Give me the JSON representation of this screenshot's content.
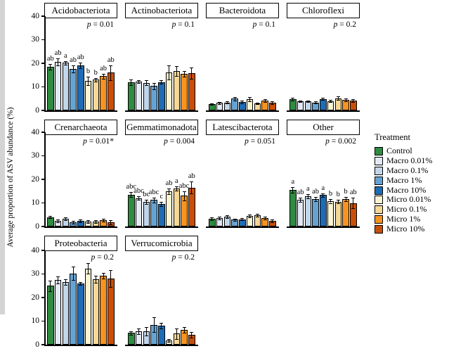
{
  "figure": {
    "ylabel": "Average proportion of ASV abundance (%)",
    "legend_title": "Treatment"
  },
  "chart_data": {
    "type": "bar",
    "title": "",
    "xlabel": "",
    "ylabel": "Average proportion of ASV abundance (%)",
    "ylim": [
      0,
      40
    ],
    "yticks": [
      "0",
      "10",
      "20",
      "30",
      "40"
    ],
    "grid": false,
    "legend_position": "right",
    "legend_title": "Treatment",
    "categories": [
      "Control",
      "Macro 0.01%",
      "Macro 0.1%",
      "Macro 1%",
      "Macro 10%",
      "Micro 0.01%",
      "Micro 0.1%",
      "Micro 1%",
      "Micro 10%"
    ],
    "colors": [
      "#2e8b3f",
      "#e4eaf5",
      "#c2d6ea",
      "#66a3d2",
      "#1e6cb5",
      "#f9f4d2",
      "#f5d896",
      "#f79320",
      "#c94e08"
    ],
    "panels": [
      {
        "name": "Acidobacteriota",
        "row": 0,
        "col": 0,
        "p_text": "p = 0.01",
        "values": [
          18.5,
          20.5,
          20.2,
          17.5,
          19.0,
          12.5,
          13.0,
          14.5,
          16.0
        ],
        "errors": [
          1.2,
          1.5,
          0.8,
          1.5,
          1.2,
          1.8,
          0.8,
          1.0,
          3.2
        ],
        "letters": [
          "ab",
          "ab",
          "a",
          "ab",
          "ab",
          "b",
          "b",
          "ab",
          "ab"
        ]
      },
      {
        "name": "Actinobacteriota",
        "row": 0,
        "col": 1,
        "p_text": "p = 0.1",
        "values": [
          12.0,
          12.2,
          11.7,
          10.3,
          12.0,
          16.0,
          16.7,
          15.5,
          15.8
        ],
        "errors": [
          1.2,
          0.6,
          1.0,
          1.2,
          0.8,
          3.0,
          2.0,
          1.3,
          2.3
        ],
        "letters": []
      },
      {
        "name": "Bacteroidota",
        "row": 0,
        "col": 2,
        "p_text": "p = 0.1",
        "values": [
          2.7,
          3.2,
          3.4,
          5.0,
          3.7,
          4.8,
          3.0,
          4.2,
          3.3
        ],
        "errors": [
          0.3,
          0.4,
          0.5,
          0.8,
          0.6,
          0.9,
          0.4,
          0.7,
          0.5
        ],
        "letters": []
      },
      {
        "name": "Chloroflexi",
        "row": 0,
        "col": 3,
        "p_text": "p = 0.2",
        "values": [
          4.8,
          3.9,
          3.9,
          3.4,
          4.9,
          4.0,
          5.2,
          4.6,
          4.3
        ],
        "errors": [
          0.6,
          0.4,
          0.3,
          0.4,
          0.5,
          0.5,
          0.8,
          0.6,
          0.6
        ],
        "letters": []
      },
      {
        "name": "Crenarchaeota",
        "row": 1,
        "col": 0,
        "p_text": "p = 0.01*",
        "values": [
          4.0,
          2.5,
          3.2,
          1.8,
          2.4,
          2.0,
          2.1,
          2.6,
          1.9
        ],
        "errors": [
          0.5,
          0.6,
          0.6,
          0.5,
          0.5,
          0.6,
          0.5,
          0.6,
          0.9
        ],
        "letters": []
      },
      {
        "name": "Gemmatimonadota",
        "row": 1,
        "col": 1,
        "p_text": "p = 0.004",
        "values": [
          13.5,
          12.0,
          10.5,
          11.2,
          9.5,
          15.0,
          16.2,
          13.0,
          16.5
        ],
        "errors": [
          1.1,
          0.7,
          0.8,
          1.1,
          0.8,
          1.2,
          0.9,
          2.0,
          2.5
        ],
        "letters": [
          "abc",
          "abc",
          "bc",
          "abc",
          "c",
          "ab",
          "a",
          "abc",
          "ab"
        ]
      },
      {
        "name": "Latescibacterota",
        "row": 1,
        "col": 2,
        "p_text": "p = 0.051",
        "values": [
          3.3,
          3.6,
          4.2,
          2.9,
          3.1,
          4.4,
          4.7,
          3.6,
          2.4
        ],
        "errors": [
          0.7,
          0.5,
          0.6,
          0.5,
          0.4,
          0.6,
          0.6,
          0.5,
          0.5
        ],
        "letters": []
      },
      {
        "name": "Other",
        "row": 1,
        "col": 3,
        "p_text": "p = 0.002",
        "values": [
          15.5,
          11.3,
          12.8,
          11.6,
          13.3,
          10.8,
          10.5,
          11.5,
          10.0
        ],
        "errors": [
          1.3,
          0.8,
          1.0,
          1.0,
          0.8,
          0.8,
          0.7,
          0.9,
          2.2
        ],
        "letters": [
          "a",
          "ab",
          "a",
          "ab",
          "a",
          "b",
          "b",
          "b",
          "ab"
        ]
      },
      {
        "name": "Proteobacteria",
        "row": 2,
        "col": 0,
        "p_text": "p = 0.2",
        "values": [
          25.0,
          27.5,
          26.6,
          30.2,
          26.0,
          32.3,
          27.8,
          29.2,
          28.0
        ],
        "errors": [
          2.2,
          1.5,
          1.2,
          2.8,
          0.5,
          2.2,
          1.5,
          1.2,
          3.5
        ],
        "letters": []
      },
      {
        "name": "Verrucomicrobia",
        "row": 2,
        "col": 1,
        "p_text": "p = 0.2",
        "values": [
          5.0,
          5.6,
          5.7,
          8.5,
          8.0,
          1.8,
          4.7,
          6.3,
          4.3
        ],
        "errors": [
          0.8,
          1.2,
          1.8,
          3.0,
          1.2,
          0.5,
          2.2,
          1.2,
          1.2
        ],
        "letters": []
      }
    ]
  }
}
